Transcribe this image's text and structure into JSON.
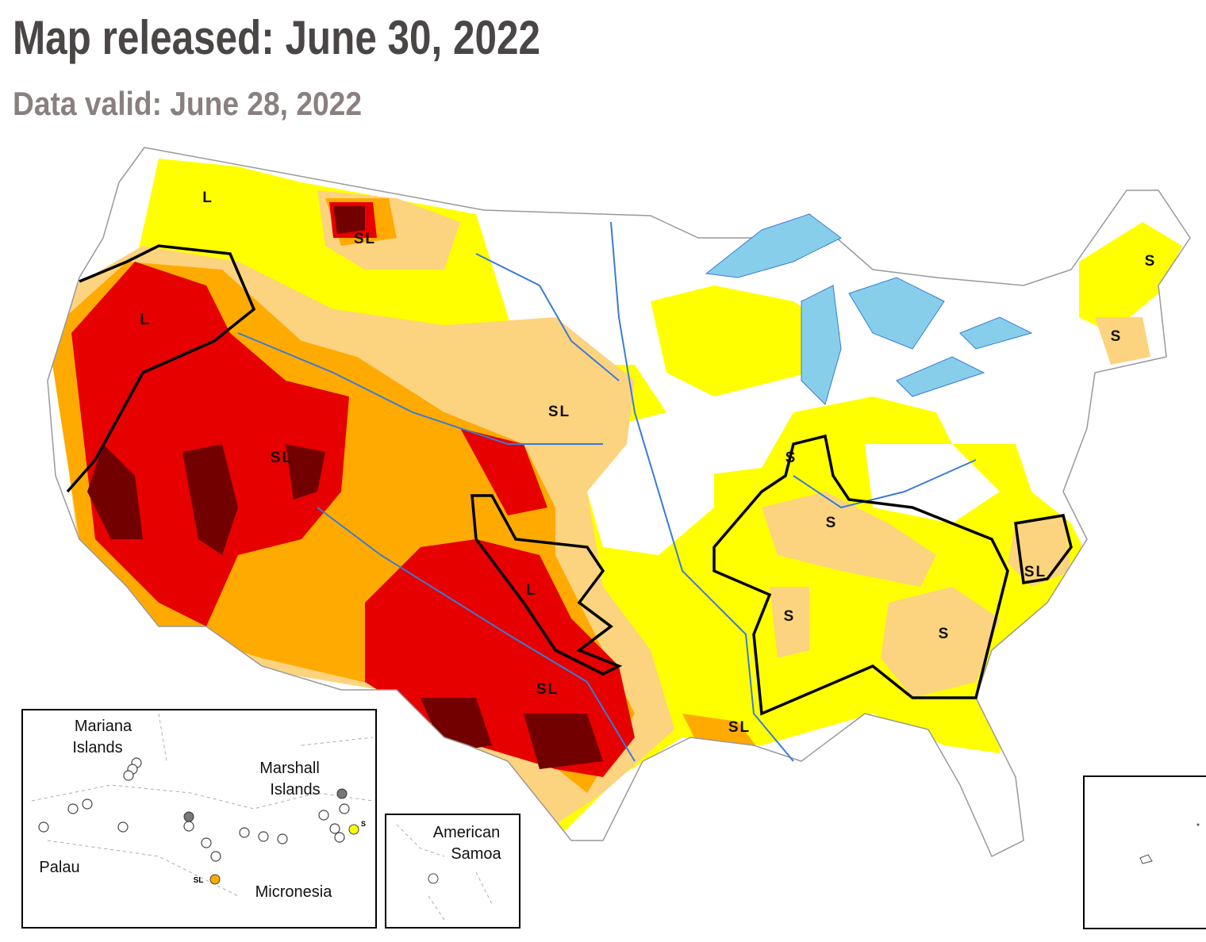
{
  "header": {
    "title": "Map released: June 30, 2022",
    "subtitle": "Data valid: June 28, 2022"
  },
  "map": {
    "labels": [
      "L",
      "SL",
      "L",
      "SL",
      "SL",
      "S",
      "S",
      "S",
      "S",
      "SL",
      "L",
      "S",
      "S",
      "SL",
      "SL"
    ]
  },
  "insets": {
    "pacific": {
      "labels": [
        [
          "Mariana",
          "Islands"
        ],
        [
          "Marshall",
          "Islands"
        ],
        [
          "Palau"
        ],
        [
          "Micronesia"
        ]
      ],
      "marks": [
        "SL",
        "S"
      ]
    },
    "samoa": {
      "label": [
        "American",
        "Samoa"
      ]
    }
  }
}
